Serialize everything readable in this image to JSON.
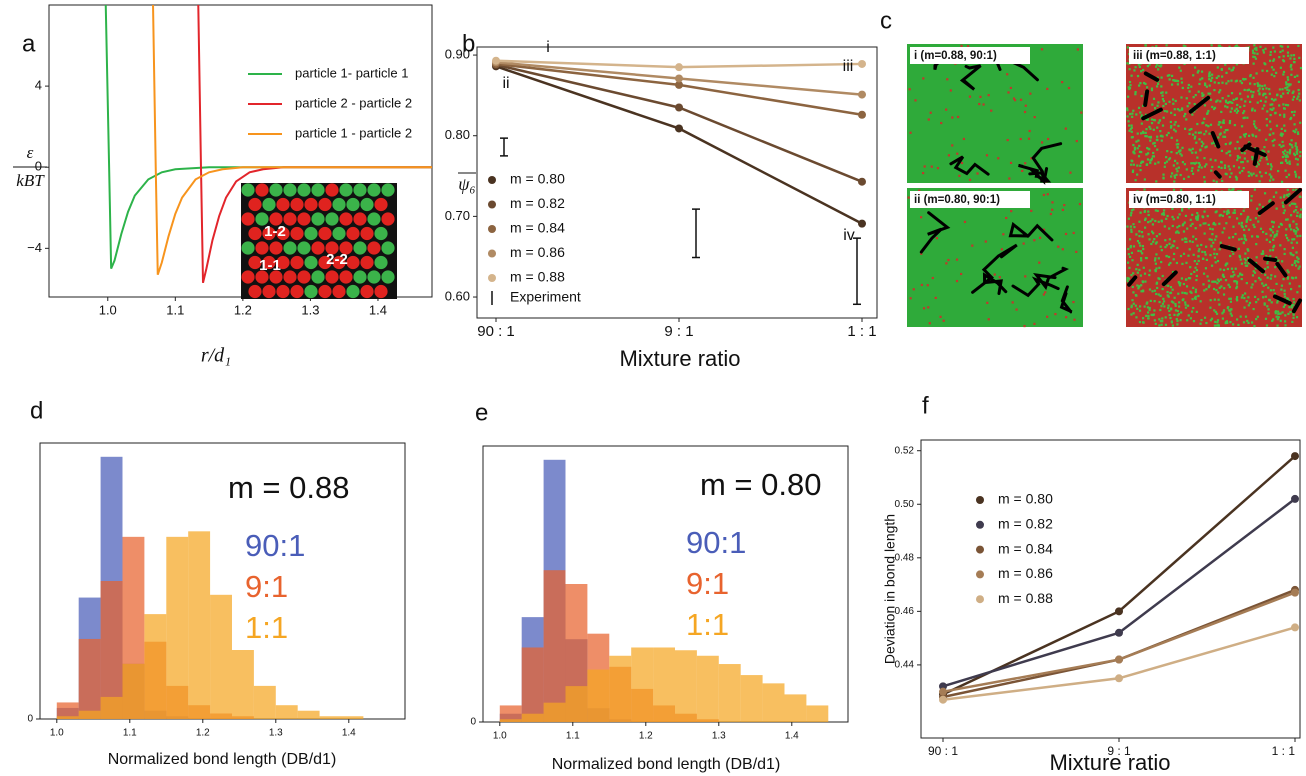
{
  "chart_data": [
    {
      "panel": "a",
      "type": "line",
      "xlabel": "r/d₁",
      "ylabel_numerator": "ε",
      "ylabel_denominator": "kBT",
      "xlim": [
        0.913,
        1.48
      ],
      "ylim": [
        -6.4,
        8.0
      ],
      "xticks": [
        {
          "value": 1.0,
          "label": "1.0"
        },
        1.1,
        1.2,
        1.3,
        1.4
      ],
      "yticks": [
        {
          "value": -4,
          "label": "−4"
        },
        0,
        4
      ],
      "legend": "upper right",
      "series": [
        {
          "name": "particle 1- particle 1",
          "color": "#2db34a",
          "x": [
            0.997,
            1.002,
            1.005,
            1.01,
            1.02,
            1.03,
            1.04,
            1.06,
            1.08,
            1.1,
            1.15,
            1.48
          ],
          "values": [
            8,
            0,
            -5,
            -4.6,
            -3.3,
            -2.2,
            -1.4,
            -0.6,
            -0.25,
            -0.1,
            0,
            0
          ]
        },
        {
          "name": "particle 2 - particle 2",
          "color": "#e2252b",
          "x": [
            1.134,
            1.138,
            1.141,
            1.146,
            1.155,
            1.165,
            1.175,
            1.19,
            1.21,
            1.23,
            1.26,
            1.48
          ],
          "values": [
            8,
            0,
            -5.7,
            -5.0,
            -3.6,
            -2.4,
            -1.5,
            -0.7,
            -0.25,
            -0.1,
            0,
            0
          ]
        },
        {
          "name": "particle 1 - particle 2",
          "color": "#f7941d",
          "x": [
            1.067,
            1.071,
            1.074,
            1.08,
            1.09,
            1.1,
            1.11,
            1.13,
            1.15,
            1.17,
            1.2,
            1.48
          ],
          "values": [
            8,
            0,
            -5.3,
            -4.7,
            -3.4,
            -2.3,
            -1.5,
            -0.6,
            -0.25,
            -0.1,
            0,
            0
          ]
        }
      ],
      "inset_labels": [
        "1-2",
        "1-1",
        "2-2"
      ]
    },
    {
      "panel": "b",
      "type": "line",
      "xlabel": "Mixture ratio",
      "ylabel": "ψ₆",
      "categories": [
        "90 : 1",
        "9 : 1",
        "1 : 1"
      ],
      "ylim": [
        0.574,
        0.91
      ],
      "yticks": [
        {
          "value": 0.6,
          "label": "0.60"
        },
        {
          "value": 0.7,
          "label": "0.70"
        },
        {
          "value": 0.8,
          "label": "0.80"
        },
        {
          "value": 0.9,
          "label": "0.90"
        }
      ],
      "markers": true,
      "legend": "lower left",
      "series": [
        {
          "name": "m = 0.80",
          "color": "#4a3321",
          "values": [
            0.886,
            0.809,
            0.691
          ]
        },
        {
          "name": "m = 0.82",
          "color": "#6b4a30",
          "values": [
            0.888,
            0.835,
            0.743
          ]
        },
        {
          "name": "m = 0.84",
          "color": "#8c6440",
          "values": [
            0.889,
            0.863,
            0.826
          ]
        },
        {
          "name": "m = 0.86",
          "color": "#b08a63",
          "values": [
            0.891,
            0.871,
            0.851
          ]
        },
        {
          "name": "m = 0.88",
          "color": "#d4b48c",
          "values": [
            0.893,
            0.885,
            0.889
          ]
        }
      ],
      "error_bars": {
        "name": "Experiment",
        "color": "#111111",
        "values": [
          0.786,
          0.679,
          0.632
        ],
        "errors": [
          0.011,
          0.03,
          0.041
        ]
      },
      "annotations": [
        "i",
        "ii",
        "iii",
        "iv"
      ]
    },
    {
      "panel": "d",
      "type": "histogram",
      "title": "m = 0.88",
      "xlabel": "Normalized bond length (DB/d1)",
      "bins": [
        1.0,
        1.03,
        1.06,
        1.09,
        1.12,
        1.15,
        1.18,
        1.21,
        1.24,
        1.27,
        1.3,
        1.33,
        1.36,
        1.39,
        1.42,
        1.45
      ],
      "xlim": [
        0.977,
        1.477
      ],
      "ylim": [
        0,
        1
      ],
      "xticks": [
        {
          "value": 1.0,
          "label": "1.0"
        },
        1.1,
        1.2,
        1.3,
        1.4
      ],
      "yticks": [
        0
      ],
      "series": [
        {
          "name": "90:1",
          "color": "#4a5db8",
          "values": [
            0.04,
            0.44,
            0.95,
            0.2,
            0.03,
            0.01,
            0,
            0,
            0,
            0,
            0,
            0,
            0,
            0,
            0
          ]
        },
        {
          "name": "9:1",
          "color": "#e8632e",
          "values": [
            0.06,
            0.29,
            0.5,
            0.66,
            0.28,
            0.12,
            0.05,
            0.02,
            0.01,
            0,
            0,
            0,
            0,
            0,
            0
          ]
        },
        {
          "name": "1:1",
          "color": "#f5a623",
          "values": [
            0.01,
            0.03,
            0.08,
            0.2,
            0.38,
            0.66,
            0.68,
            0.45,
            0.25,
            0.12,
            0.05,
            0.03,
            0.01,
            0.01,
            0
          ]
        }
      ]
    },
    {
      "panel": "e",
      "type": "histogram",
      "title": "m = 0.80",
      "xlabel": "Normalized bond length (DB/d1)",
      "bins": [
        1.0,
        1.03,
        1.06,
        1.09,
        1.12,
        1.15,
        1.18,
        1.21,
        1.24,
        1.27,
        1.3,
        1.33,
        1.36,
        1.39,
        1.42,
        1.45
      ],
      "xlim": [
        0.977,
        1.477
      ],
      "ylim": [
        0,
        1
      ],
      "xticks": [
        {
          "value": 1.0,
          "label": "1.0"
        },
        1.1,
        1.2,
        1.3,
        1.4
      ],
      "yticks": [
        0
      ],
      "series": [
        {
          "name": "90:1",
          "color": "#4a5db8",
          "values": [
            0.03,
            0.38,
            0.95,
            0.3,
            0.05,
            0.01,
            0,
            0,
            0,
            0,
            0,
            0,
            0,
            0,
            0
          ]
        },
        {
          "name": "9:1",
          "color": "#e8632e",
          "values": [
            0.06,
            0.27,
            0.55,
            0.5,
            0.32,
            0.2,
            0.12,
            0.06,
            0.03,
            0.01,
            0,
            0,
            0,
            0,
            0
          ]
        },
        {
          "name": "1:1",
          "color": "#f5a623",
          "values": [
            0.01,
            0.03,
            0.07,
            0.13,
            0.19,
            0.24,
            0.27,
            0.27,
            0.26,
            0.24,
            0.21,
            0.17,
            0.14,
            0.1,
            0.06
          ]
        }
      ]
    },
    {
      "panel": "f",
      "type": "line",
      "xlabel": "Mixture ratio",
      "ylabel": "Deviation in bond length",
      "categories": [
        "90 : 1",
        "9 : 1",
        "1 : 1"
      ],
      "ylim": [
        0.4127,
        0.524
      ],
      "yticks": [
        0.44,
        0.46,
        0.48,
        {
          "value": 0.5,
          "label": "0.50"
        },
        0.52
      ],
      "markers": true,
      "legend": "upper left",
      "series": [
        {
          "name": "m = 0.80",
          "color": "#4a3321",
          "values": [
            0.429,
            0.46,
            0.518
          ]
        },
        {
          "name": "m = 0.82",
          "color": "#3f3b4e",
          "values": [
            0.432,
            0.452,
            0.502
          ]
        },
        {
          "name": "m = 0.84",
          "color": "#7a5436",
          "values": [
            0.428,
            0.442,
            0.468
          ]
        },
        {
          "name": "m = 0.86",
          "color": "#a57c55",
          "values": [
            0.43,
            0.442,
            0.467
          ]
        },
        {
          "name": "m = 0.88",
          "color": "#cfae85",
          "values": [
            0.427,
            0.435,
            0.454
          ]
        }
      ]
    }
  ],
  "micrographs": {
    "panel": "c",
    "captions": [
      "i (m=0.88, 90:1)",
      "iii (m=0.88, 1:1)",
      "ii (m=0.80, 90:1)",
      "iv (m=0.80, 1:1)"
    ]
  }
}
